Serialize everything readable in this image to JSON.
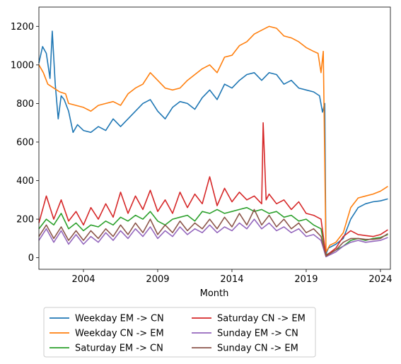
{
  "chart_data": {
    "type": "line",
    "xlabel": "Month",
    "ylabel": "",
    "title": "",
    "x_ticks": [
      2004,
      2009,
      2014,
      2019,
      2024
    ],
    "y_ticks": [
      0,
      200,
      400,
      600,
      800,
      1000,
      1200
    ],
    "xlim": [
      2001.0,
      2024.67
    ],
    "ylim": [
      -60,
      1300
    ],
    "grid": false,
    "legend_location": "bottom (below axis), two columns",
    "series": [
      {
        "name": "Weekday EM -> CN",
        "color": "#1f77b4",
        "points": [
          [
            2001.0,
            1010
          ],
          [
            2001.25,
            1095
          ],
          [
            2001.5,
            1060
          ],
          [
            2001.75,
            930
          ],
          [
            2001.9,
            1175
          ],
          [
            2002.1,
            900
          ],
          [
            2002.3,
            720
          ],
          [
            2002.5,
            840
          ],
          [
            2002.7,
            820
          ],
          [
            2003.0,
            760
          ],
          [
            2003.3,
            650
          ],
          [
            2003.6,
            690
          ],
          [
            2004.0,
            660
          ],
          [
            2004.5,
            650
          ],
          [
            2005.0,
            680
          ],
          [
            2005.5,
            660
          ],
          [
            2006.0,
            720
          ],
          [
            2006.5,
            680
          ],
          [
            2007.0,
            720
          ],
          [
            2007.5,
            760
          ],
          [
            2008.0,
            800
          ],
          [
            2008.5,
            820
          ],
          [
            2009.0,
            760
          ],
          [
            2009.5,
            720
          ],
          [
            2010.0,
            780
          ],
          [
            2010.5,
            810
          ],
          [
            2011.0,
            800
          ],
          [
            2011.5,
            770
          ],
          [
            2012.0,
            830
          ],
          [
            2012.5,
            870
          ],
          [
            2013.0,
            820
          ],
          [
            2013.5,
            900
          ],
          [
            2014.0,
            880
          ],
          [
            2014.5,
            920
          ],
          [
            2015.0,
            950
          ],
          [
            2015.5,
            960
          ],
          [
            2016.0,
            920
          ],
          [
            2016.5,
            960
          ],
          [
            2017.0,
            950
          ],
          [
            2017.5,
            900
          ],
          [
            2018.0,
            920
          ],
          [
            2018.5,
            880
          ],
          [
            2019.0,
            870
          ],
          [
            2019.5,
            860
          ],
          [
            2019.9,
            840
          ],
          [
            2020.1,
            755
          ],
          [
            2020.25,
            800
          ],
          [
            2020.33,
            20
          ],
          [
            2020.5,
            50
          ],
          [
            2021.0,
            70
          ],
          [
            2021.5,
            100
          ],
          [
            2022.0,
            200
          ],
          [
            2022.5,
            260
          ],
          [
            2023.0,
            280
          ],
          [
            2023.5,
            290
          ],
          [
            2024.0,
            295
          ],
          [
            2024.5,
            305
          ]
        ]
      },
      {
        "name": "Weekday CN -> EM",
        "color": "#ff7f0e",
        "points": [
          [
            2001.0,
            1000
          ],
          [
            2001.3,
            960
          ],
          [
            2001.6,
            900
          ],
          [
            2002.0,
            880
          ],
          [
            2002.4,
            860
          ],
          [
            2002.8,
            850
          ],
          [
            2003.0,
            800
          ],
          [
            2003.5,
            790
          ],
          [
            2004.0,
            780
          ],
          [
            2004.5,
            760
          ],
          [
            2005.0,
            790
          ],
          [
            2005.5,
            800
          ],
          [
            2006.0,
            810
          ],
          [
            2006.5,
            790
          ],
          [
            2007.0,
            850
          ],
          [
            2007.5,
            880
          ],
          [
            2008.0,
            900
          ],
          [
            2008.5,
            960
          ],
          [
            2009.0,
            920
          ],
          [
            2009.5,
            880
          ],
          [
            2010.0,
            870
          ],
          [
            2010.5,
            880
          ],
          [
            2011.0,
            920
          ],
          [
            2011.5,
            950
          ],
          [
            2012.0,
            980
          ],
          [
            2012.5,
            1000
          ],
          [
            2013.0,
            960
          ],
          [
            2013.5,
            1040
          ],
          [
            2014.0,
            1050
          ],
          [
            2014.5,
            1100
          ],
          [
            2015.0,
            1120
          ],
          [
            2015.5,
            1160
          ],
          [
            2016.0,
            1180
          ],
          [
            2016.5,
            1200
          ],
          [
            2017.0,
            1190
          ],
          [
            2017.5,
            1150
          ],
          [
            2018.0,
            1140
          ],
          [
            2018.5,
            1120
          ],
          [
            2019.0,
            1090
          ],
          [
            2019.5,
            1070
          ],
          [
            2019.8,
            1060
          ],
          [
            2020.0,
            960
          ],
          [
            2020.15,
            1070
          ],
          [
            2020.33,
            30
          ],
          [
            2020.6,
            65
          ],
          [
            2021.0,
            80
          ],
          [
            2021.5,
            130
          ],
          [
            2022.0,
            260
          ],
          [
            2022.5,
            310
          ],
          [
            2023.0,
            320
          ],
          [
            2023.5,
            330
          ],
          [
            2024.0,
            345
          ],
          [
            2024.5,
            370
          ]
        ]
      },
      {
        "name": "Saturday EM -> CN",
        "color": "#2ca02c",
        "points": [
          [
            2001.0,
            150
          ],
          [
            2001.5,
            200
          ],
          [
            2002.0,
            170
          ],
          [
            2002.5,
            230
          ],
          [
            2003.0,
            150
          ],
          [
            2003.5,
            180
          ],
          [
            2004.0,
            140
          ],
          [
            2004.5,
            170
          ],
          [
            2005.0,
            160
          ],
          [
            2005.5,
            190
          ],
          [
            2006.0,
            170
          ],
          [
            2006.5,
            210
          ],
          [
            2007.0,
            190
          ],
          [
            2007.5,
            220
          ],
          [
            2008.0,
            200
          ],
          [
            2008.5,
            240
          ],
          [
            2009.0,
            190
          ],
          [
            2009.5,
            170
          ],
          [
            2010.0,
            200
          ],
          [
            2010.5,
            210
          ],
          [
            2011.0,
            220
          ],
          [
            2011.5,
            190
          ],
          [
            2012.0,
            240
          ],
          [
            2012.5,
            230
          ],
          [
            2013.0,
            250
          ],
          [
            2013.5,
            230
          ],
          [
            2014.0,
            240
          ],
          [
            2014.5,
            250
          ],
          [
            2015.0,
            260
          ],
          [
            2015.5,
            240
          ],
          [
            2016.0,
            250
          ],
          [
            2016.5,
            230
          ],
          [
            2017.0,
            240
          ],
          [
            2017.5,
            210
          ],
          [
            2018.0,
            220
          ],
          [
            2018.5,
            190
          ],
          [
            2019.0,
            200
          ],
          [
            2019.5,
            170
          ],
          [
            2020.0,
            150
          ],
          [
            2020.33,
            15
          ],
          [
            2021.0,
            40
          ],
          [
            2021.5,
            60
          ],
          [
            2022.0,
            90
          ],
          [
            2022.5,
            100
          ],
          [
            2023.0,
            90
          ],
          [
            2023.5,
            100
          ],
          [
            2024.0,
            105
          ],
          [
            2024.5,
            120
          ]
        ]
      },
      {
        "name": "Saturday CN -> EM",
        "color": "#d62728",
        "points": [
          [
            2001.0,
            180
          ],
          [
            2001.5,
            320
          ],
          [
            2002.0,
            200
          ],
          [
            2002.5,
            300
          ],
          [
            2003.0,
            190
          ],
          [
            2003.5,
            240
          ],
          [
            2004.0,
            170
          ],
          [
            2004.5,
            260
          ],
          [
            2005.0,
            200
          ],
          [
            2005.5,
            280
          ],
          [
            2006.0,
            210
          ],
          [
            2006.5,
            340
          ],
          [
            2007.0,
            230
          ],
          [
            2007.5,
            320
          ],
          [
            2008.0,
            250
          ],
          [
            2008.5,
            350
          ],
          [
            2009.0,
            240
          ],
          [
            2009.5,
            300
          ],
          [
            2010.0,
            230
          ],
          [
            2010.5,
            340
          ],
          [
            2011.0,
            260
          ],
          [
            2011.5,
            330
          ],
          [
            2012.0,
            280
          ],
          [
            2012.5,
            420
          ],
          [
            2013.0,
            270
          ],
          [
            2013.5,
            360
          ],
          [
            2014.0,
            290
          ],
          [
            2014.5,
            340
          ],
          [
            2015.0,
            300
          ],
          [
            2015.5,
            320
          ],
          [
            2016.0,
            280
          ],
          [
            2016.1,
            700
          ],
          [
            2016.3,
            300
          ],
          [
            2016.5,
            330
          ],
          [
            2017.0,
            280
          ],
          [
            2017.5,
            300
          ],
          [
            2018.0,
            250
          ],
          [
            2018.5,
            290
          ],
          [
            2019.0,
            230
          ],
          [
            2019.5,
            220
          ],
          [
            2020.0,
            200
          ],
          [
            2020.33,
            10
          ],
          [
            2021.0,
            50
          ],
          [
            2021.5,
            110
          ],
          [
            2022.0,
            140
          ],
          [
            2022.5,
            120
          ],
          [
            2023.0,
            115
          ],
          [
            2023.5,
            110
          ],
          [
            2024.0,
            120
          ],
          [
            2024.5,
            145
          ]
        ]
      },
      {
        "name": "Sunday EM -> CN",
        "color": "#9467bd",
        "points": [
          [
            2001.0,
            90
          ],
          [
            2001.5,
            150
          ],
          [
            2002.0,
            80
          ],
          [
            2002.5,
            140
          ],
          [
            2003.0,
            70
          ],
          [
            2003.5,
            120
          ],
          [
            2004.0,
            70
          ],
          [
            2004.5,
            110
          ],
          [
            2005.0,
            80
          ],
          [
            2005.5,
            130
          ],
          [
            2006.0,
            90
          ],
          [
            2006.5,
            140
          ],
          [
            2007.0,
            100
          ],
          [
            2007.5,
            150
          ],
          [
            2008.0,
            110
          ],
          [
            2008.5,
            160
          ],
          [
            2009.0,
            100
          ],
          [
            2009.5,
            140
          ],
          [
            2010.0,
            110
          ],
          [
            2010.5,
            160
          ],
          [
            2011.0,
            120
          ],
          [
            2011.5,
            150
          ],
          [
            2012.0,
            130
          ],
          [
            2012.5,
            170
          ],
          [
            2013.0,
            130
          ],
          [
            2013.5,
            160
          ],
          [
            2014.0,
            140
          ],
          [
            2014.5,
            180
          ],
          [
            2015.0,
            150
          ],
          [
            2015.5,
            200
          ],
          [
            2016.0,
            150
          ],
          [
            2016.5,
            180
          ],
          [
            2017.0,
            140
          ],
          [
            2017.5,
            160
          ],
          [
            2018.0,
            130
          ],
          [
            2018.5,
            150
          ],
          [
            2019.0,
            110
          ],
          [
            2019.5,
            120
          ],
          [
            2020.0,
            90
          ],
          [
            2020.33,
            5
          ],
          [
            2021.0,
            30
          ],
          [
            2021.5,
            60
          ],
          [
            2022.0,
            80
          ],
          [
            2022.5,
            90
          ],
          [
            2023.0,
            80
          ],
          [
            2023.5,
            85
          ],
          [
            2024.0,
            90
          ],
          [
            2024.5,
            105
          ]
        ]
      },
      {
        "name": "Sunday CN -> EM",
        "color": "#8c564b",
        "points": [
          [
            2001.0,
            110
          ],
          [
            2001.5,
            170
          ],
          [
            2002.0,
            100
          ],
          [
            2002.5,
            160
          ],
          [
            2003.0,
            90
          ],
          [
            2003.5,
            140
          ],
          [
            2004.0,
            90
          ],
          [
            2004.5,
            140
          ],
          [
            2005.0,
            100
          ],
          [
            2005.5,
            150
          ],
          [
            2006.0,
            110
          ],
          [
            2006.5,
            170
          ],
          [
            2007.0,
            120
          ],
          [
            2007.5,
            180
          ],
          [
            2008.0,
            130
          ],
          [
            2008.5,
            200
          ],
          [
            2009.0,
            120
          ],
          [
            2009.5,
            170
          ],
          [
            2010.0,
            130
          ],
          [
            2010.5,
            190
          ],
          [
            2011.0,
            140
          ],
          [
            2011.5,
            180
          ],
          [
            2012.0,
            150
          ],
          [
            2012.5,
            200
          ],
          [
            2013.0,
            150
          ],
          [
            2013.5,
            210
          ],
          [
            2014.0,
            160
          ],
          [
            2014.5,
            230
          ],
          [
            2015.0,
            170
          ],
          [
            2015.5,
            250
          ],
          [
            2016.0,
            170
          ],
          [
            2016.5,
            220
          ],
          [
            2017.0,
            160
          ],
          [
            2017.5,
            200
          ],
          [
            2018.0,
            150
          ],
          [
            2018.5,
            180
          ],
          [
            2019.0,
            130
          ],
          [
            2019.5,
            150
          ],
          [
            2020.0,
            110
          ],
          [
            2020.33,
            8
          ],
          [
            2021.0,
            40
          ],
          [
            2021.5,
            80
          ],
          [
            2022.0,
            100
          ],
          [
            2022.5,
            100
          ],
          [
            2023.0,
            95
          ],
          [
            2023.5,
            95
          ],
          [
            2024.0,
            100
          ],
          [
            2024.5,
            125
          ]
        ]
      }
    ]
  }
}
